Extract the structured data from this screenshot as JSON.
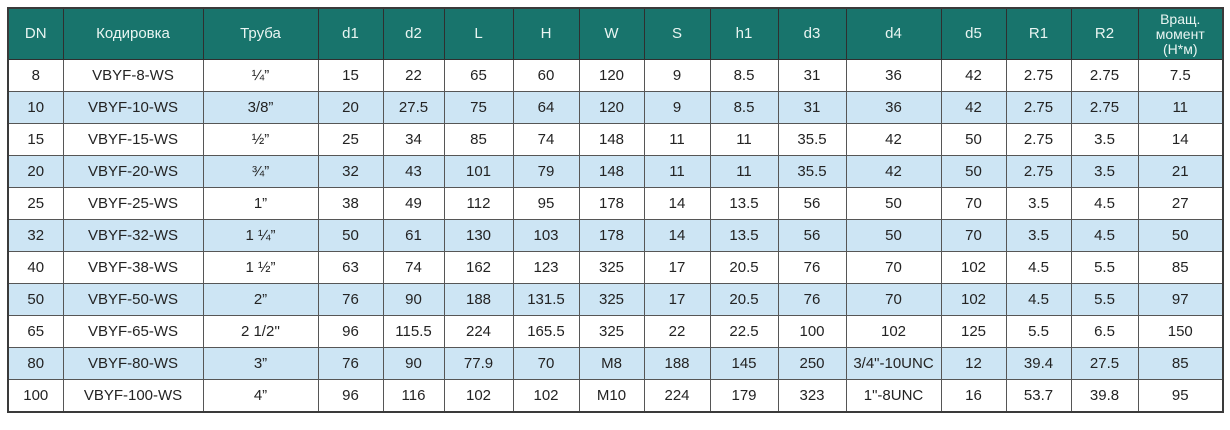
{
  "colors": {
    "header_bg": "#18746c",
    "header_text": "#e9f5f2",
    "row_alt_bg": "#cde5f4",
    "body_text": "#232323",
    "border": "#565656"
  },
  "table": {
    "columns": [
      "DN",
      "Кодировка",
      "Труба",
      "d1",
      "d2",
      "L",
      "H",
      "W",
      "S",
      "h1",
      "d3",
      "d4",
      "d5",
      "R1",
      "R2",
      "Вращ. момент (Н*м)"
    ],
    "rows": [
      [
        "8",
        "VBYF-8-WS",
        "¼”",
        "15",
        "22",
        "65",
        "60",
        "120",
        "9",
        "8.5",
        "31",
        "36",
        "42",
        "2.75",
        "2.75",
        "7.5"
      ],
      [
        "10",
        "VBYF-10-WS",
        "3/8”",
        "20",
        "27.5",
        "75",
        "64",
        "120",
        "9",
        "8.5",
        "31",
        "36",
        "42",
        "2.75",
        "2.75",
        "11"
      ],
      [
        "15",
        "VBYF-15-WS",
        "½”",
        "25",
        "34",
        "85",
        "74",
        "148",
        "11",
        "11",
        "35.5",
        "42",
        "50",
        "2.75",
        "3.5",
        "14"
      ],
      [
        "20",
        "VBYF-20-WS",
        "¾”",
        "32",
        "43",
        "101",
        "79",
        "148",
        "11",
        "11",
        "35.5",
        "42",
        "50",
        "2.75",
        "3.5",
        "21"
      ],
      [
        "25",
        "VBYF-25-WS",
        "1”",
        "38",
        "49",
        "112",
        "95",
        "178",
        "14",
        "13.5",
        "56",
        "50",
        "70",
        "3.5",
        "4.5",
        "27"
      ],
      [
        "32",
        "VBYF-32-WS",
        "1 ¼”",
        "50",
        "61",
        "130",
        "103",
        "178",
        "14",
        "13.5",
        "56",
        "50",
        "70",
        "3.5",
        "4.5",
        "50"
      ],
      [
        "40",
        "VBYF-38-WS",
        "1 ½”",
        "63",
        "74",
        "162",
        "123",
        "325",
        "17",
        "20.5",
        "76",
        "70",
        "102",
        "4.5",
        "5.5",
        "85"
      ],
      [
        "50",
        "VBYF-50-WS",
        "2”",
        "76",
        "90",
        "188",
        "131.5",
        "325",
        "17",
        "20.5",
        "76",
        "70",
        "102",
        "4.5",
        "5.5",
        "97"
      ],
      [
        "65",
        "VBYF-65-WS",
        "2 1/2''",
        "96",
        "115.5",
        "224",
        "165.5",
        "325",
        "22",
        "22.5",
        "100",
        "102",
        "125",
        "5.5",
        "6.5",
        "150"
      ],
      [
        "80",
        "VBYF-80-WS",
        "3”",
        "76",
        "90",
        "77.9",
        "70",
        "M8",
        "188",
        "145",
        "250",
        "3/4\"-10UNC",
        "12",
        "39.4",
        "27.5",
        "85"
      ],
      [
        "100",
        "VBYF-100-WS",
        "4”",
        "96",
        "116",
        "102",
        "102",
        "M10",
        "224",
        "179",
        "323",
        "1\"-8UNC",
        "16",
        "53.7",
        "39.8",
        "95"
      ]
    ]
  }
}
